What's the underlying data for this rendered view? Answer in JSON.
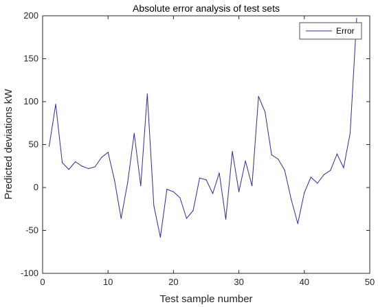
{
  "chart_data": {
    "type": "line",
    "title": "Absolute error analysis of test sets",
    "xlabel": "Test sample number",
    "ylabel": "Predicted deviations kW",
    "xlim": [
      0,
      50
    ],
    "ylim": [
      -100,
      200
    ],
    "xticks": [
      0,
      10,
      20,
      30,
      40,
      50
    ],
    "yticks": [
      -100,
      -50,
      0,
      50,
      100,
      150,
      200
    ],
    "grid": false,
    "legend_position": "top-right",
    "series": [
      {
        "name": "Error",
        "color": "#2a2aa0",
        "x": [
          1,
          2,
          3,
          4,
          5,
          6,
          7,
          8,
          9,
          10,
          11,
          12,
          13,
          14,
          15,
          16,
          17,
          18,
          19,
          20,
          21,
          22,
          23,
          24,
          25,
          26,
          27,
          28,
          29,
          30,
          31,
          32,
          33,
          34,
          35,
          36,
          37,
          38,
          39,
          40,
          41,
          42,
          43,
          44,
          45,
          46,
          47,
          48
        ],
        "y": [
          48,
          97,
          29,
          21,
          30,
          25,
          22,
          24,
          35,
          41,
          8,
          -36,
          6,
          63,
          2,
          109,
          -21,
          -58,
          -2,
          -5,
          -12,
          -36,
          -27,
          11,
          9,
          -7,
          17,
          -37,
          42,
          -5,
          31,
          2,
          106,
          88,
          38,
          33,
          20,
          -14,
          -42,
          -6,
          12,
          5,
          15,
          20,
          39,
          23,
          63,
          197
        ]
      }
    ]
  }
}
